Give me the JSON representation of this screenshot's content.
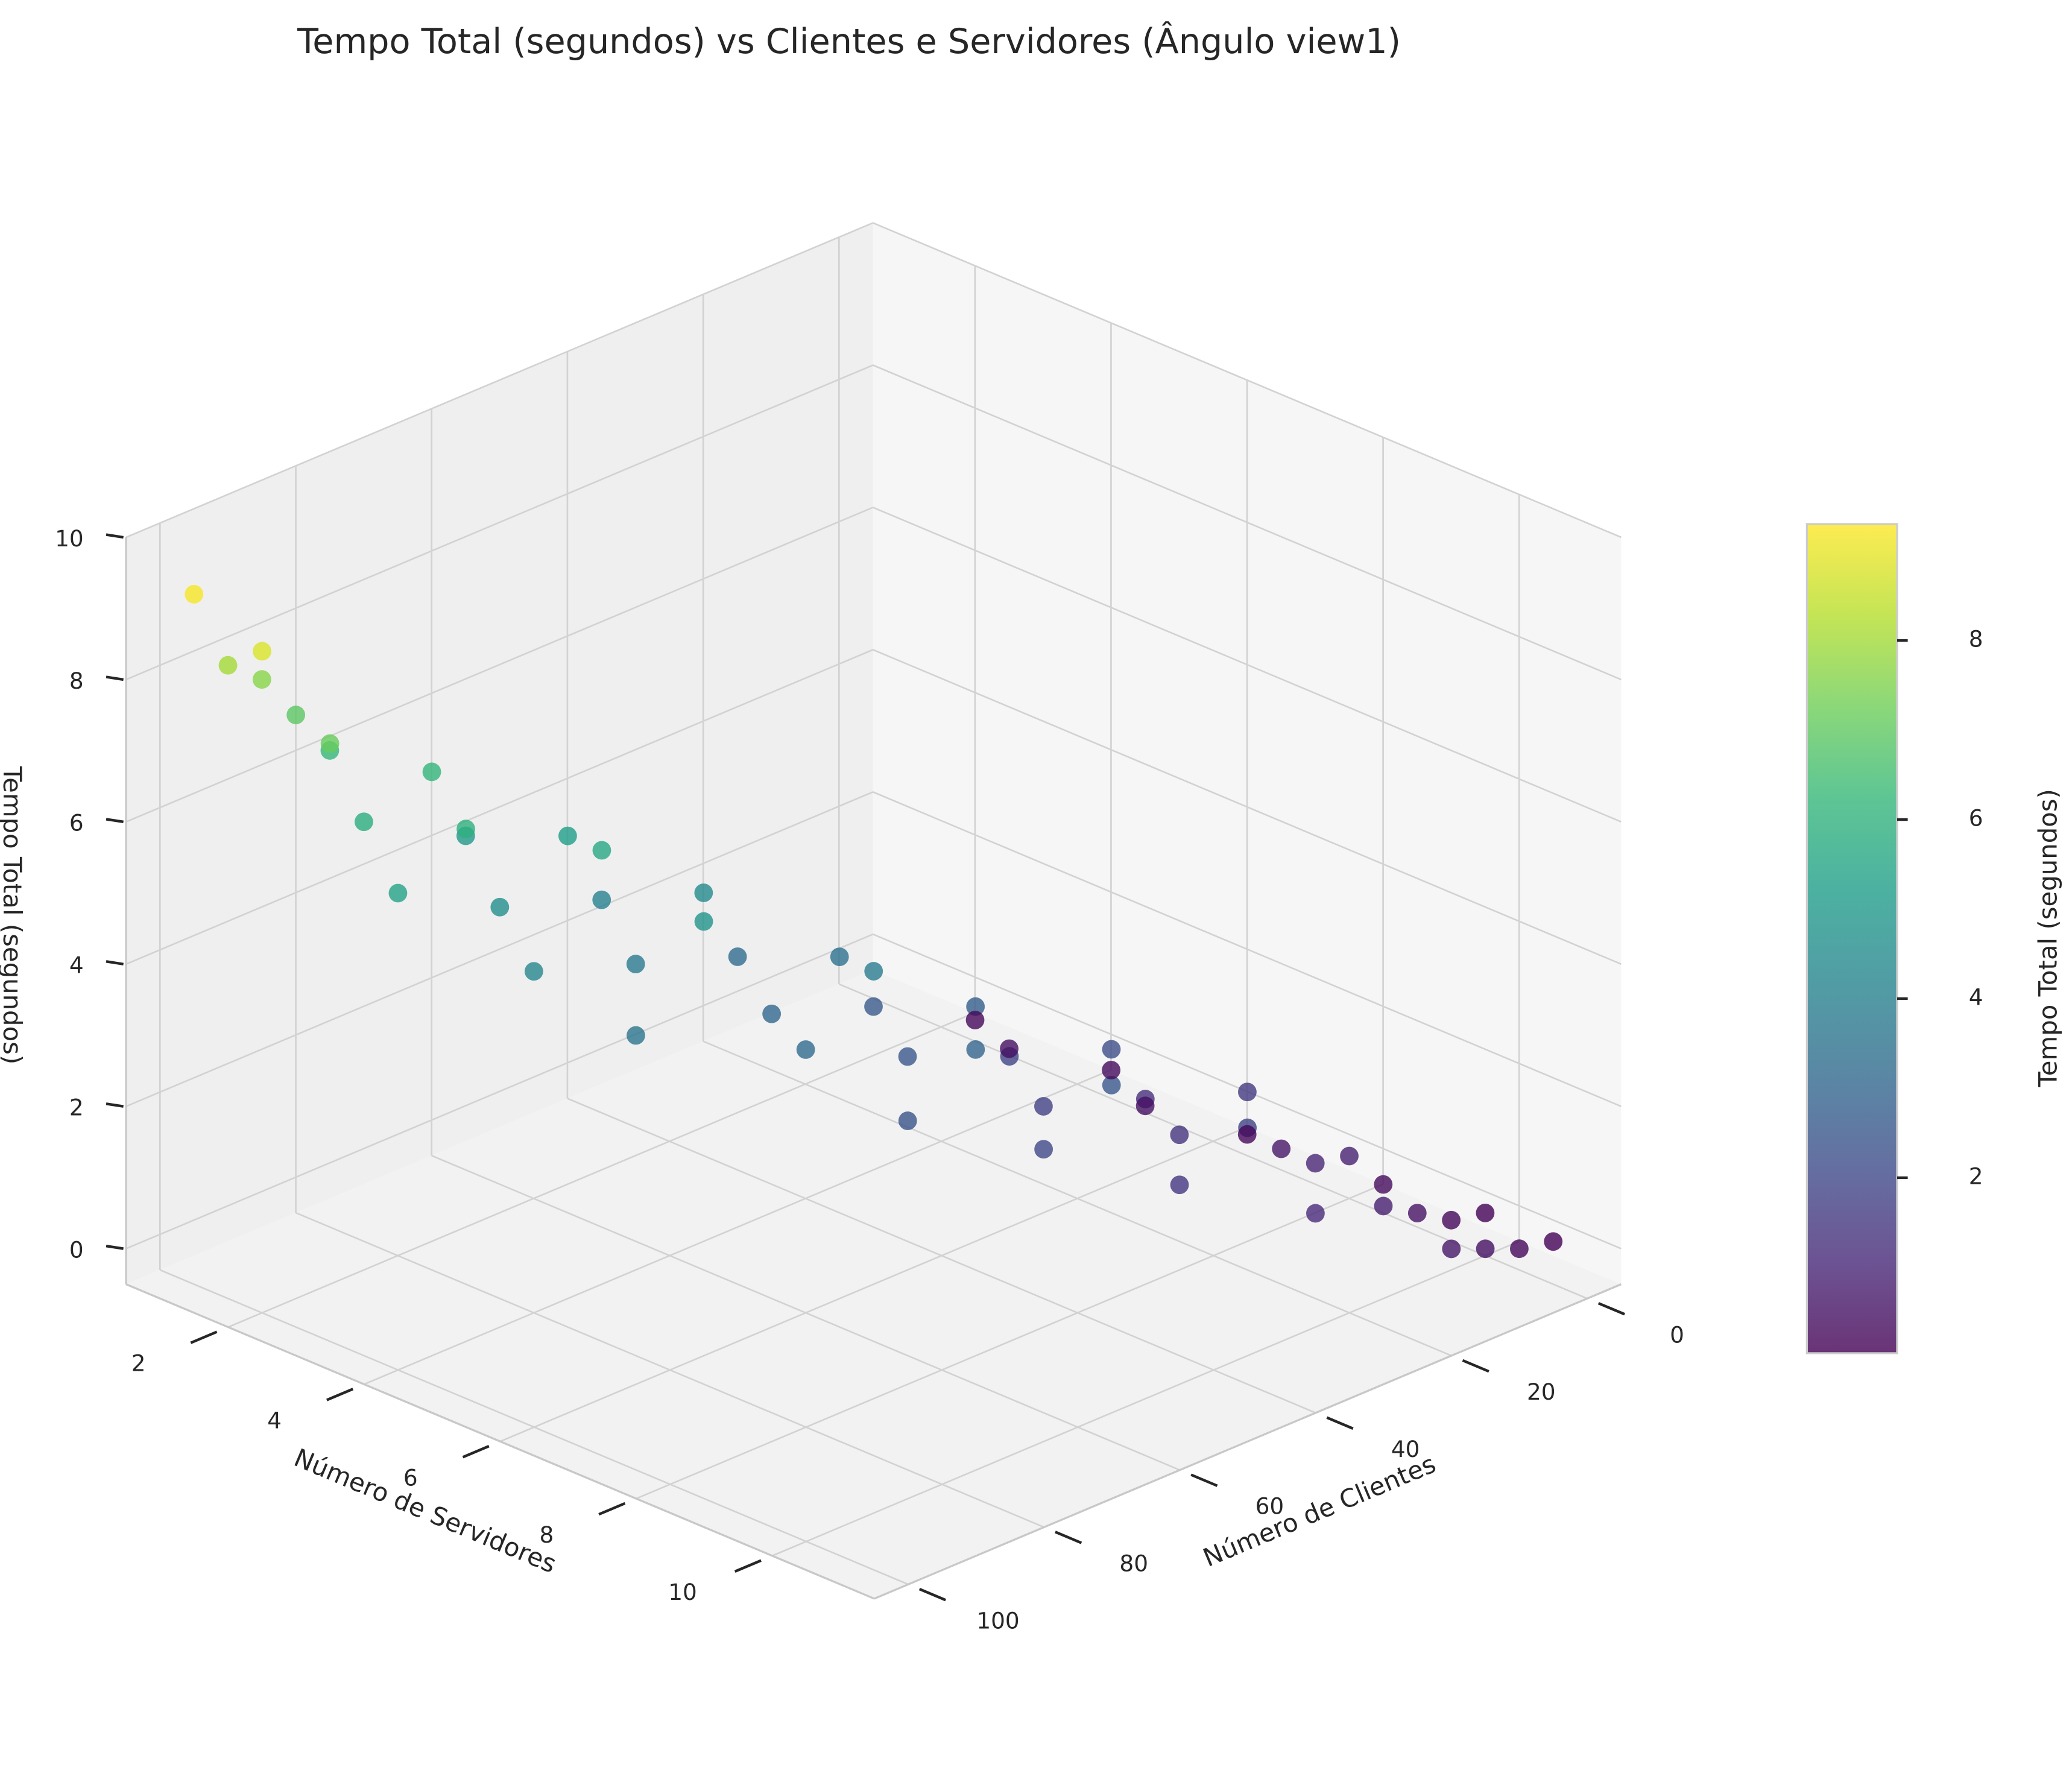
{
  "chart_data": {
    "type": "scatter3d",
    "title": "Tempo Total (segundos) vs Clientes e Servidores (Ângulo view1)",
    "xlabel": "Número de Clientes",
    "ylabel": "Número de Servidores",
    "zlabel": "Tempo Total (segundos)",
    "x": [
      100,
      95,
      90,
      85,
      80,
      100,
      90,
      85,
      75,
      70,
      90,
      80,
      75,
      65,
      60,
      80,
      70,
      65,
      55,
      50,
      75,
      65,
      55,
      45,
      40,
      60,
      50,
      45,
      35,
      30,
      55,
      45,
      35,
      25,
      20,
      45,
      35,
      25,
      15,
      10,
      35,
      25,
      15,
      10,
      5,
      25,
      15,
      10,
      5,
      0,
      15,
      10,
      5,
      0,
      10,
      5,
      10,
      5,
      5
    ],
    "y": [
      1,
      1,
      1,
      1,
      1,
      2,
      2,
      2,
      2,
      2,
      3,
      3,
      3,
      3,
      3,
      4,
      4,
      4,
      4,
      4,
      5,
      5,
      5,
      5,
      5,
      6,
      6,
      6,
      6,
      6,
      7,
      7,
      7,
      7,
      7,
      8,
      8,
      8,
      8,
      8,
      9,
      9,
      9,
      9,
      9,
      10,
      10,
      10,
      10,
      10,
      11,
      11,
      11,
      11,
      4,
      5,
      6,
      7,
      3
    ],
    "z": [
      9.2,
      8.0,
      7.6,
      6.9,
      6.2,
      8.8,
      7.1,
      5.8,
      6.1,
      5.0,
      5.4,
      5.9,
      4.6,
      5.2,
      4.1,
      4.3,
      5.6,
      3.8,
      4.4,
      3.3,
      3.6,
      4.8,
      3.1,
      3.5,
      2.6,
      3.2,
      3.9,
      2.5,
      2.8,
      1.9,
      2.4,
      3.0,
      1.8,
      2.2,
      1.3,
      2.0,
      2.5,
      1.4,
      1.6,
      0.6,
      1.5,
      1.9,
      1.0,
      0.9,
      0.3,
      1.1,
      0.8,
      0.5,
      0.2,
      0.1,
      0.6,
      0.4,
      0.2,
      0.1,
      0.4,
      0.3,
      0.4,
      0.2,
      0.2
    ],
    "xlim": [
      -5,
      105
    ],
    "ylim": [
      0.5,
      11.5
    ],
    "zlim": [
      -0.5,
      10
    ],
    "xticks": [
      0,
      20,
      40,
      60,
      80,
      100
    ],
    "yticks": [
      2,
      4,
      6,
      8,
      10
    ],
    "zticks": [
      0,
      2,
      4,
      6,
      8,
      10
    ],
    "colormap": "viridis",
    "clim": [
      0.04,
      9.3
    ],
    "cticks": [
      2,
      4,
      6,
      8
    ],
    "colorbar_label": "Tempo Total (segundos)",
    "alpha": 0.8,
    "grid": true
  }
}
